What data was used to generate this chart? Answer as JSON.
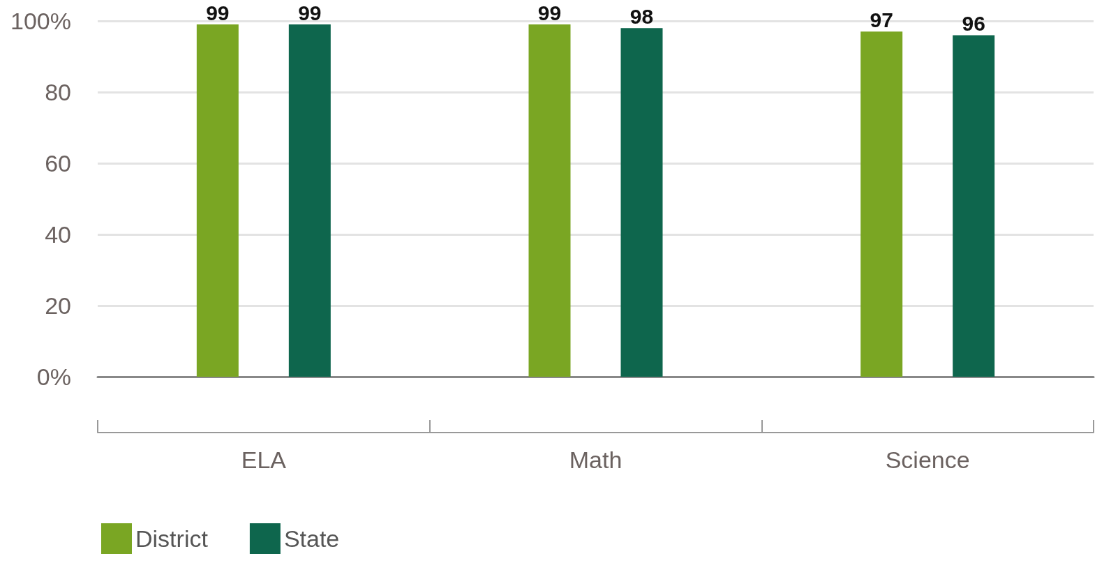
{
  "chart_data": {
    "type": "bar",
    "categories": [
      "ELA",
      "Math",
      "Science"
    ],
    "series": [
      {
        "name": "District",
        "color": "#7aa623",
        "values": [
          99,
          99,
          97
        ]
      },
      {
        "name": "State",
        "color": "#0e664d",
        "values": [
          99,
          98,
          96
        ]
      }
    ],
    "ylim": [
      0,
      100
    ],
    "yticks": [
      {
        "value": 0,
        "label": "0%"
      },
      20,
      40,
      60,
      80,
      {
        "value": 100,
        "label": "100%"
      }
    ],
    "grid": "y",
    "legend": "bottom left",
    "data_labels": true
  }
}
